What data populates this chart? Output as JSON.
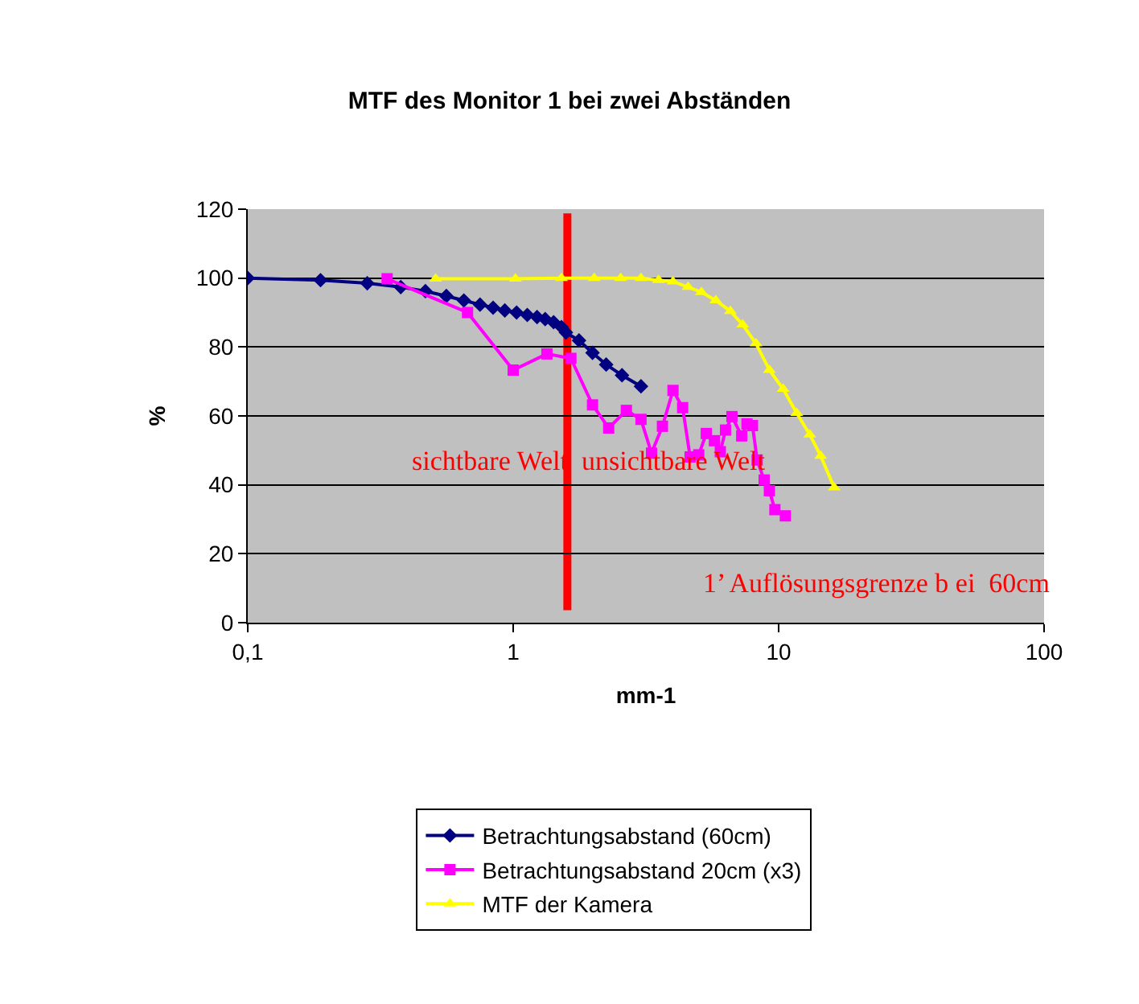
{
  "chart_data": {
    "type": "line",
    "title": "MTF des Monitor 1 bei zwei Abständen",
    "xlabel": "mm-1",
    "ylabel": "%",
    "log": "x",
    "xlim": [
      0.1,
      100
    ],
    "xticks": [
      {
        "value": 0.1,
        "label": "0,1"
      },
      1,
      10,
      100
    ],
    "ylim": [
      0,
      120
    ],
    "yticks": [
      0,
      20,
      40,
      60,
      80,
      100,
      120
    ],
    "grid": "y",
    "legend": "bottom",
    "series": [
      {
        "name": "Betrachtungsabstand (60cm)",
        "color": "#000080",
        "marker": "diamond",
        "x": [
          0.1,
          0.188,
          0.282,
          0.377,
          0.467,
          0.56,
          0.652,
          0.75,
          0.84,
          0.93,
          1.03,
          1.13,
          1.23,
          1.32,
          1.42,
          1.52,
          1.58,
          1.77,
          1.99,
          2.24,
          2.57,
          3.03
        ],
        "values": [
          100,
          99.4,
          98.5,
          97.4,
          96.2,
          94.8,
          93.5,
          92.3,
          91.4,
          90.6,
          90,
          89.3,
          88.7,
          88.1,
          87.2,
          85.8,
          84.2,
          81.9,
          78.3,
          74.9,
          71.8,
          68.6
        ]
      },
      {
        "name": "Betrachtungsabstand 20cm (x3)",
        "color": "#ff00ff",
        "marker": "square",
        "x": [
          0.335,
          0.673,
          1.0,
          1.34,
          1.65,
          1.99,
          2.29,
          2.67,
          3.03,
          3.32,
          3.65,
          4.0,
          4.35,
          4.64,
          5.0,
          5.34,
          5.73,
          6.03,
          6.31,
          6.67,
          7.26,
          7.6,
          7.97,
          8.3,
          8.82,
          9.23,
          9.68,
          10.6
        ],
        "values": [
          99.8,
          90,
          73.3,
          78,
          76.7,
          63.2,
          56.5,
          61.6,
          59,
          49.2,
          57,
          67.4,
          62.4,
          48.1,
          48.7,
          54.9,
          52.8,
          49.6,
          55.9,
          59.8,
          54.2,
          57.7,
          57.2,
          47.2,
          41.4,
          38.3,
          32.8,
          31
        ]
      },
      {
        "name": "MTF der Kamera",
        "color": "#ffff00",
        "marker": "triangle",
        "x": [
          0.51,
          1.02,
          1.52,
          2.02,
          2.54,
          3.03,
          3.53,
          4.0,
          4.56,
          5.12,
          5.8,
          6.58,
          7.32,
          8.22,
          9.23,
          10.4,
          11.7,
          13.1,
          14.4,
          16.2
        ],
        "values": [
          99.8,
          99.8,
          100,
          100,
          100,
          100,
          99.4,
          99,
          97.4,
          95.9,
          93.5,
          90.4,
          86.5,
          81,
          73.3,
          67.8,
          60.8,
          54.6,
          48.4,
          39.2
        ]
      }
    ],
    "ref_lines": [
      {
        "axis": "x",
        "value": 1.6,
        "color": "#ff0000"
      }
    ],
    "annotations": [
      "sichtbare Welt  unsichtbare Welt",
      "1’ Auflösungsgrenze b ei  60cm"
    ]
  }
}
